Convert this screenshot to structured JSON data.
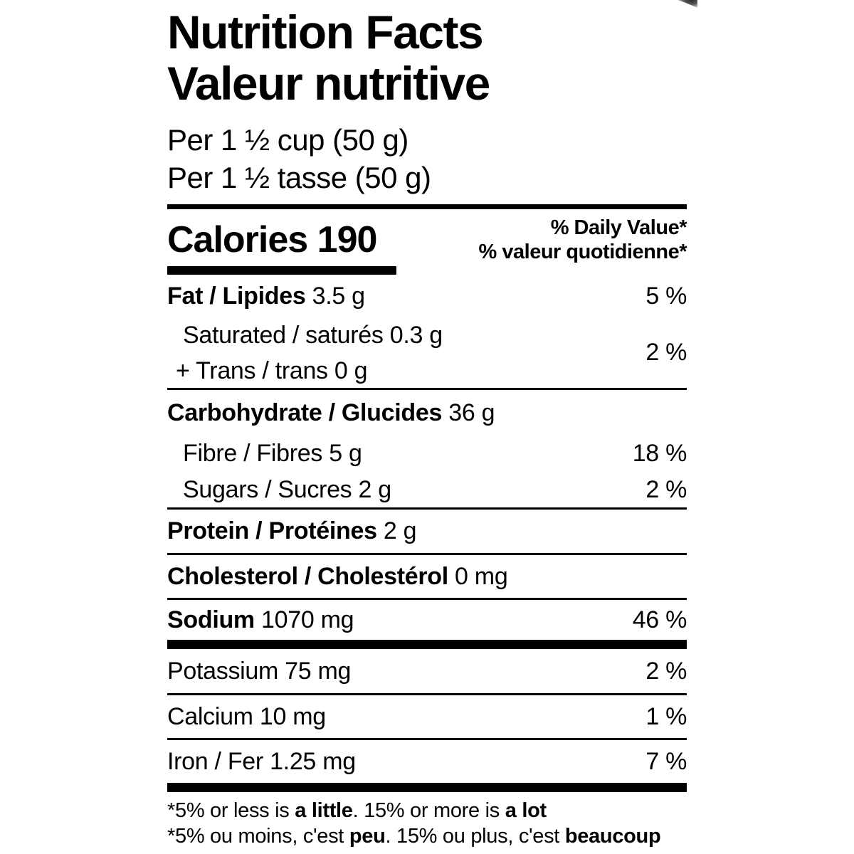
{
  "header": {
    "title_en": "Nutrition Facts",
    "title_fr": "Valeur nutritive",
    "serving_en": "Per 1 ½ cup (50 g)",
    "serving_fr": "Per 1 ½ tasse (50 g)"
  },
  "calories": {
    "label": "Calories 190",
    "dv_header_en": "% Daily Value*",
    "dv_header_fr": "% valeur quotidienne*"
  },
  "rows": {
    "fat": {
      "name": "Fat / Lipides",
      "amount": " 3.5 g",
      "dv": "5 %"
    },
    "saturated": {
      "text": "Saturated / saturés 0.3 g"
    },
    "trans": {
      "text": "+ Trans / trans 0 g",
      "dv": "2 %"
    },
    "carbohydrate": {
      "name": "Carbohydrate / Glucides",
      "amount": " 36 g"
    },
    "fibre": {
      "text": "Fibre / Fibres 5 g",
      "dv": "18 %"
    },
    "sugars": {
      "text": "Sugars / Sucres 2 g",
      "dv": "2 %"
    },
    "protein": {
      "name": "Protein / Protéines",
      "amount": " 2 g"
    },
    "cholesterol": {
      "name": "Cholesterol / Cholestérol",
      "amount": " 0 mg"
    },
    "sodium": {
      "name": "Sodium",
      "amount": " 1070 mg",
      "dv": "46 %"
    },
    "potassium": {
      "text": "Potassium 75 mg",
      "dv": "2 %"
    },
    "calcium": {
      "text": "Calcium 10 mg",
      "dv": "1 %"
    },
    "iron": {
      "text": "Iron / Fer 1.25 mg",
      "dv": "7 %"
    }
  },
  "footnote": {
    "en": {
      "pre": "*5% or less is ",
      "bold1": "a little",
      "mid": ". 15% or more is ",
      "bold2": "a lot"
    },
    "fr": {
      "pre": "*5% ou moins, c'est ",
      "bold1": "peu",
      "mid": ". 15% ou plus, c'est ",
      "bold2": "beaucoup"
    }
  },
  "colors": {
    "text": "#000000",
    "background": "#ffffff",
    "rule": "#000000"
  }
}
